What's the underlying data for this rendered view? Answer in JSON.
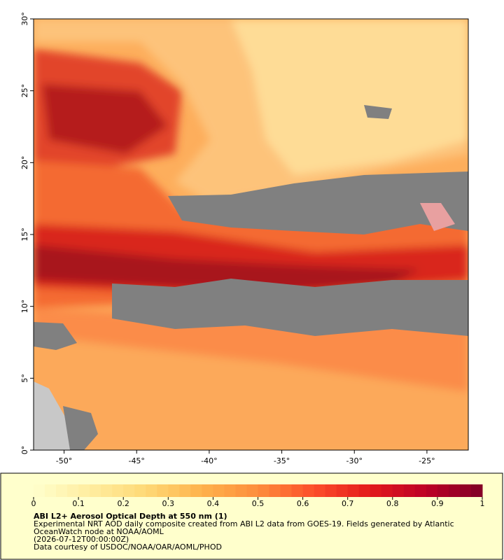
{
  "chart_data": {
    "type": "map",
    "xlim": [
      -52.1,
      -22.15
    ],
    "ylim": [
      0,
      30
    ],
    "xticks": [
      {
        "value": -50,
        "label": "-50°"
      },
      {
        "value": -45,
        "label": "-45°"
      },
      {
        "value": -40,
        "label": "-40°"
      },
      {
        "value": -35,
        "label": "-35°"
      },
      {
        "value": -30,
        "label": "-30°"
      },
      {
        "value": -25,
        "label": "-25°"
      }
    ],
    "yticks": [
      {
        "value": 0,
        "label": "0°"
      },
      {
        "value": 5,
        "label": "5°"
      },
      {
        "value": 10,
        "label": "10°"
      },
      {
        "value": 15,
        "label": "15°"
      },
      {
        "value": 20,
        "label": "20°"
      },
      {
        "value": 25,
        "label": "25°"
      },
      {
        "value": 30,
        "label": "30°"
      }
    ],
    "colorbar": {
      "lim": [
        0,
        1
      ],
      "ticks": [
        0,
        0.1,
        0.2,
        0.3,
        0.4,
        0.5,
        0.6,
        0.7,
        0.8,
        0.9,
        1
      ],
      "colors": [
        "#ffffcc",
        "#ffeda0",
        "#fed976",
        "#feb24c",
        "#fd8d3c",
        "#fc4e2a",
        "#e31a1c",
        "#bd0026",
        "#800026"
      ]
    },
    "title": "ABI L2+ Aerosol Optical Depth at 550 nm (1)",
    "description": "Experimental NRT AOD daily composite created from ABI L2 data from GOES-19. Fields generated by Atlantic OceanWatch node at NOAA/AOML",
    "date": "(2026-07-12T00:00:00Z)",
    "credit": "Data courtesy of USDOC/NOAA/OAR/AOML/PHOD"
  }
}
